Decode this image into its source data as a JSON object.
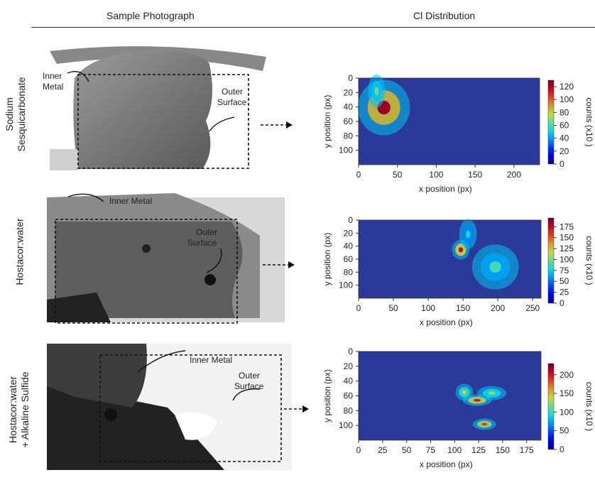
{
  "headers": {
    "left": "Sample Photograph",
    "right": "Cl Distribution"
  },
  "rows": [
    {
      "label_line1": "Sodium",
      "label_line2": "Sesquicarbonate",
      "ann_inner": [
        "Inner",
        "Metal"
      ],
      "ann_outer": [
        "Outer",
        "Surface"
      ]
    },
    {
      "label_line1": "Hostacor:water",
      "label_line2": "",
      "ann_inner": [
        "Inner Metal"
      ],
      "ann_outer": [
        "Outer",
        "Surface"
      ]
    },
    {
      "label_line1": "Hostacor:water",
      "label_line2": "+ Alkaline Sulfide",
      "ann_inner": [
        "Inner Metal"
      ],
      "ann_outer": [
        "Outer",
        "Surface"
      ]
    }
  ],
  "colors": {
    "bg_low": "#2b3a9a",
    "accent_high": "#c62020",
    "rule": "#333333"
  },
  "chart_data": [
    {
      "type": "heatmap",
      "xlabel": "x position (px)",
      "ylabel": "y position (px)",
      "xticks": [
        0,
        50,
        100,
        150,
        200
      ],
      "yticks": [
        0,
        20,
        40,
        60,
        80,
        100
      ],
      "xlim": [
        0,
        233
      ],
      "ylim": [
        0,
        120
      ],
      "colorbar_ticks": [
        0,
        20,
        40,
        60,
        80,
        100,
        120
      ],
      "colorbar_max": 130,
      "colorbar_label": "counts (x10 )"
    },
    {
      "type": "heatmap",
      "xlabel": "x position (px)",
      "ylabel": "y position (px)",
      "xticks": [
        0,
        50,
        100,
        150,
        200,
        250
      ],
      "yticks": [
        0,
        20,
        40,
        60,
        80,
        100
      ],
      "xlim": [
        0,
        262
      ],
      "ylim": [
        0,
        120
      ],
      "colorbar_ticks": [
        0,
        25,
        50,
        75,
        100,
        125,
        150,
        175
      ],
      "colorbar_max": 195,
      "colorbar_label": "counts (x10 )"
    },
    {
      "type": "heatmap",
      "xlabel": "x position (px)",
      "ylabel": "y position (px)",
      "xticks": [
        0,
        25,
        50,
        75,
        100,
        125,
        150,
        175
      ],
      "yticks": [
        0,
        20,
        40,
        60,
        80,
        100
      ],
      "xlim": [
        0,
        190
      ],
      "ylim": [
        0,
        120
      ],
      "colorbar_ticks": [
        0,
        50,
        100,
        150,
        200
      ],
      "colorbar_max": 230,
      "colorbar_label": "counts (x10 )"
    }
  ]
}
